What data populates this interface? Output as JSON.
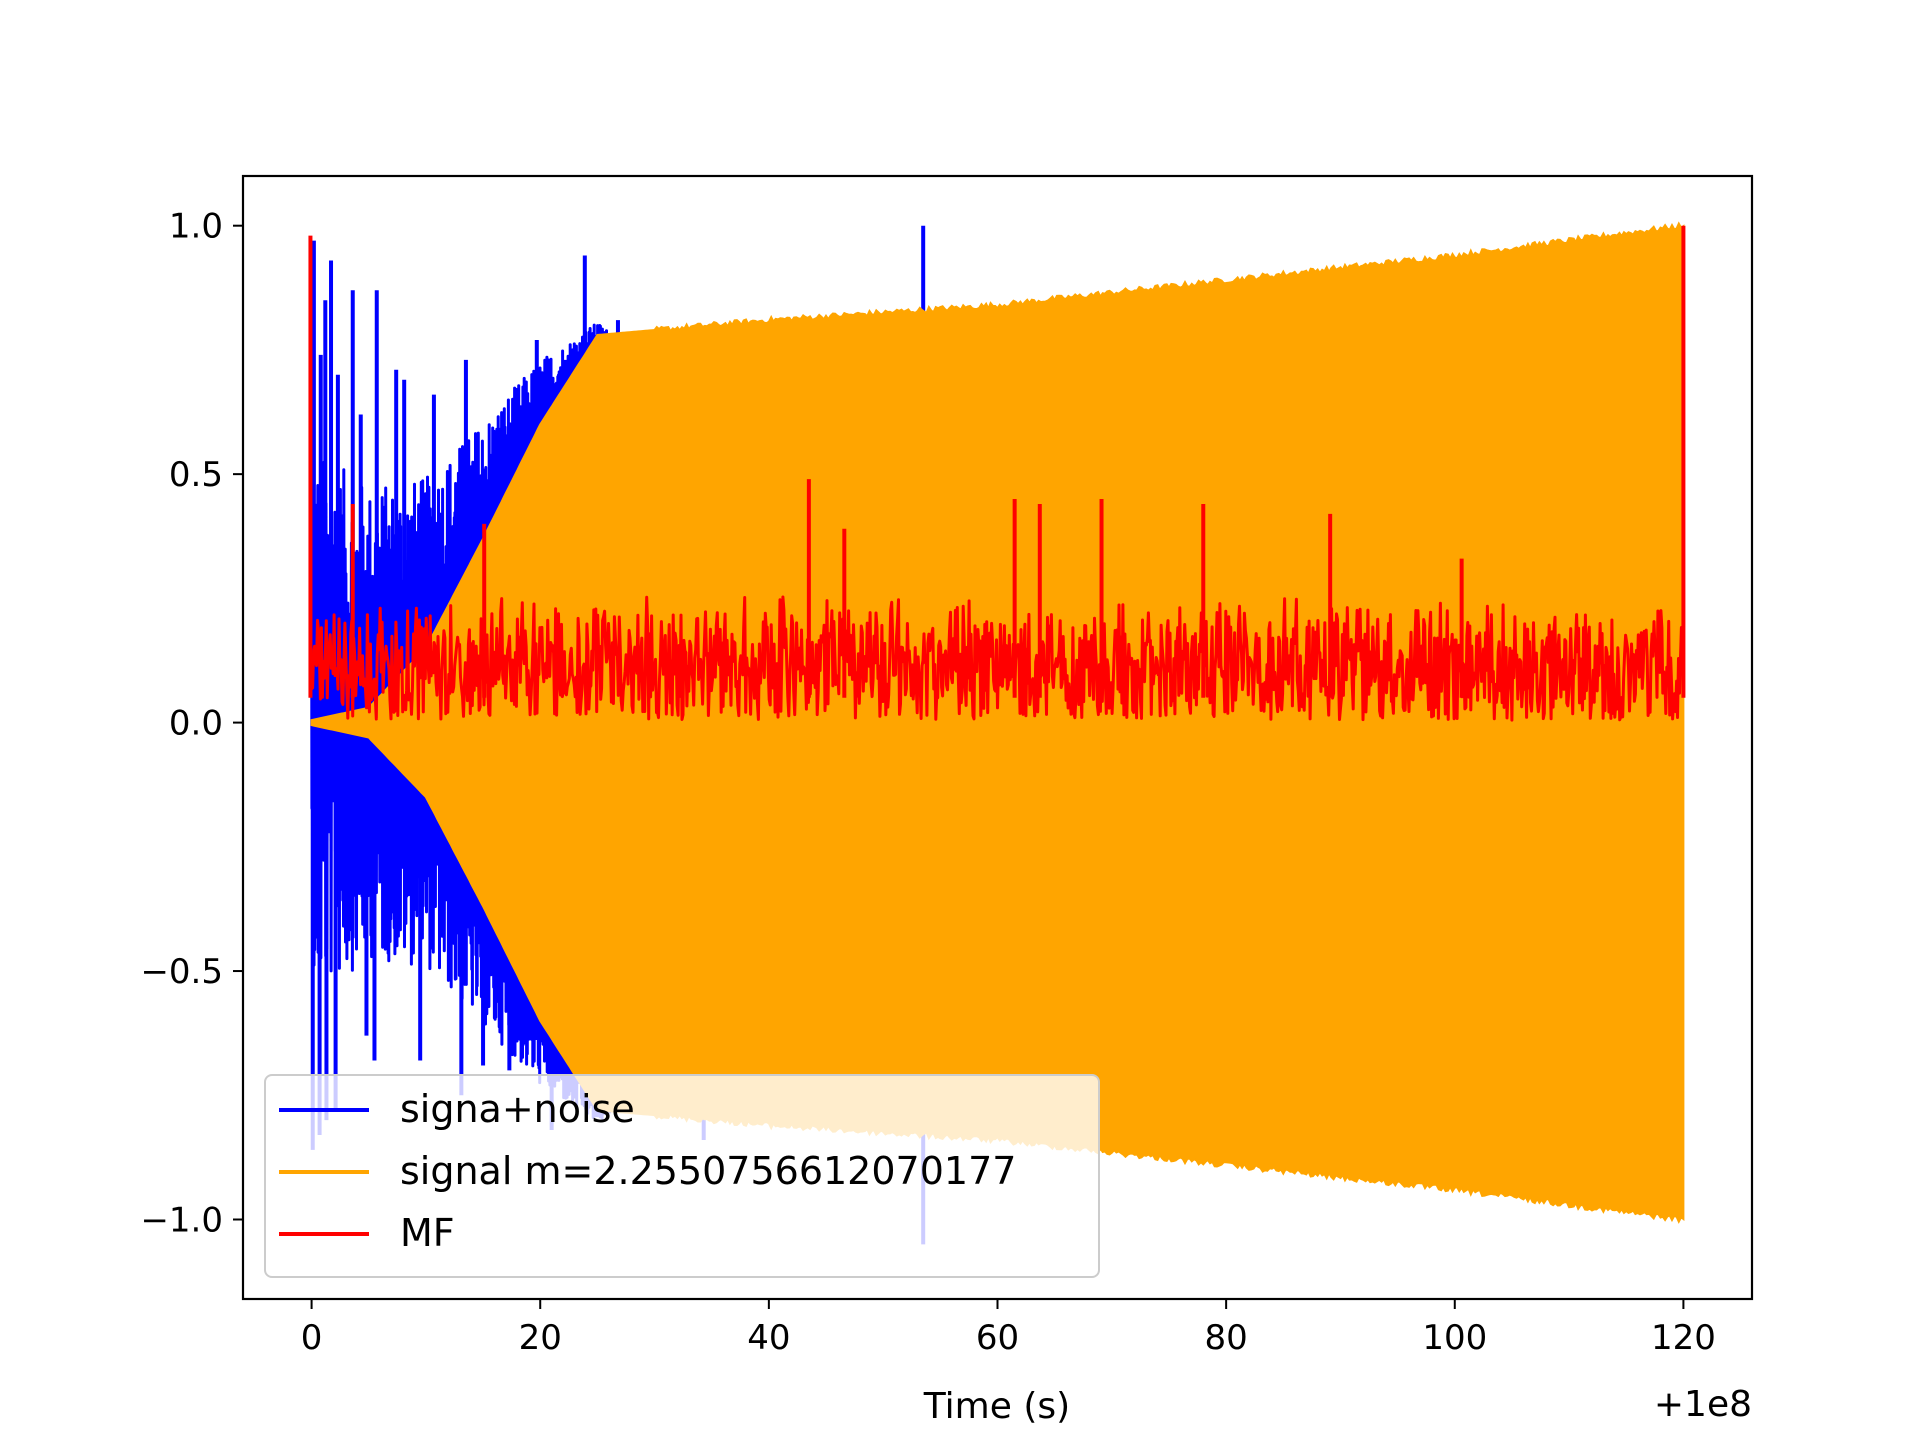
{
  "chart_data": {
    "type": "line",
    "title": "",
    "xlabel": "Time (s)",
    "ylabel": "",
    "x_offset_label": "+1e8",
    "xlim": [
      -6,
      126
    ],
    "ylim": [
      -1.16,
      1.1
    ],
    "xticks": [
      0,
      20,
      40,
      60,
      80,
      100,
      120
    ],
    "xtick_labels": [
      "0",
      "20",
      "40",
      "60",
      "80",
      "100",
      "120"
    ],
    "yticks": [
      1.0,
      0.5,
      0.0,
      -0.5,
      -1.0
    ],
    "ytick_labels": [
      "1.0",
      "0.5",
      "0.0",
      "−0.5",
      "−1.0"
    ],
    "grid": false,
    "legend_position": "lower-left",
    "series": [
      {
        "name": "signa+noise",
        "color": "#0000ff",
        "description": "noisy signal, large spikes before ~25 s, one spike at ~53.5 s",
        "spikes_upper": [
          [
            0.2,
            0.97
          ],
          [
            0.8,
            0.74
          ],
          [
            1.2,
            0.85
          ],
          [
            1.7,
            0.93
          ],
          [
            2.3,
            0.7
          ],
          [
            3.6,
            0.87
          ],
          [
            4.3,
            0.62
          ],
          [
            5.7,
            0.87
          ],
          [
            7.4,
            0.71
          ],
          [
            8.1,
            0.69
          ],
          [
            10.7,
            0.66
          ],
          [
            13.5,
            0.73
          ],
          [
            17.1,
            0.58
          ],
          [
            19.7,
            0.77
          ],
          [
            22.2,
            0.73
          ],
          [
            23.9,
            0.94
          ],
          [
            26.8,
            0.81
          ],
          [
            53.5,
            1.0
          ]
        ],
        "spikes_lower": [
          [
            0.1,
            -0.86
          ],
          [
            0.7,
            -0.83
          ],
          [
            1.3,
            -0.8
          ],
          [
            2.1,
            -0.78
          ],
          [
            4.8,
            -0.63
          ],
          [
            5.5,
            -0.68
          ],
          [
            9.5,
            -0.68
          ],
          [
            13.1,
            -0.75
          ],
          [
            15.0,
            -0.69
          ],
          [
            17.3,
            -0.7
          ],
          [
            21.0,
            -0.82
          ],
          [
            29.3,
            -0.77
          ],
          [
            34.3,
            -0.84
          ],
          [
            46.6,
            -0.81
          ],
          [
            53.5,
            -1.05
          ]
        ]
      },
      {
        "name": "signal m=2.2550756612070177",
        "color": "#ffa500",
        "description": "chirp signal with symmetric envelope",
        "envelope": [
          [
            0,
            0.005
          ],
          [
            5,
            0.03
          ],
          [
            10,
            0.15
          ],
          [
            15,
            0.37
          ],
          [
            20,
            0.6
          ],
          [
            25,
            0.78
          ],
          [
            30,
            0.79
          ],
          [
            40,
            0.81
          ],
          [
            60,
            0.84
          ],
          [
            80,
            0.89
          ],
          [
            100,
            0.94
          ],
          [
            120,
            1.0
          ]
        ]
      },
      {
        "name": "MF",
        "color": "#ff0000",
        "description": "matched filter output, noise band ~0.0 to ~0.3 with spikes",
        "baseline": [
          0.0,
          0.2
        ],
        "spikes": [
          [
            -0.1,
            0.98
          ],
          [
            3.6,
            0.44
          ],
          [
            15.1,
            0.4
          ],
          [
            43.5,
            0.49
          ],
          [
            46.6,
            0.39
          ],
          [
            61.5,
            0.45
          ],
          [
            63.7,
            0.44
          ],
          [
            69.1,
            0.45
          ],
          [
            78.0,
            0.44
          ],
          [
            89.1,
            0.42
          ],
          [
            100.6,
            0.33
          ],
          [
            120.0,
            1.0
          ]
        ]
      }
    ]
  }
}
